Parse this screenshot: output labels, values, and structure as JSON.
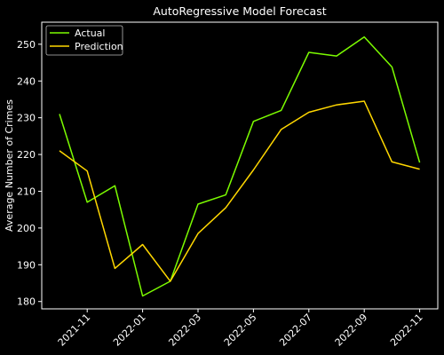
{
  "chart_data": {
    "type": "line",
    "title": "AutoRegressive Model Forecast",
    "xlabel": "",
    "ylabel": "Average Number of Crimes",
    "x": [
      "2021-10",
      "2021-11",
      "2021-12",
      "2022-01",
      "2022-02",
      "2022-03",
      "2022-04",
      "2022-05",
      "2022-06",
      "2022-07",
      "2022-08",
      "2022-09",
      "2022-10",
      "2022-11"
    ],
    "x_ticks": [
      "2021-11",
      "2022-01",
      "2022-03",
      "2022-05",
      "2022-07",
      "2022-09",
      "2022-11"
    ],
    "y_ticks": [
      180,
      190,
      200,
      210,
      220,
      230,
      240,
      250
    ],
    "ylim": [
      178,
      256
    ],
    "grid": false,
    "legend_position": "top-left",
    "series": [
      {
        "name": "Actual",
        "color": "#7cfc00",
        "values": [
          231,
          207,
          211.5,
          181.5,
          185.5,
          206.5,
          209,
          229,
          232,
          247.8,
          246.8,
          252,
          243.8,
          217.8
        ]
      },
      {
        "name": "Prediction",
        "color": "#ffd700",
        "values": [
          221,
          215.5,
          189,
          195.5,
          185.5,
          198.5,
          205.5,
          215.8,
          226.8,
          231.5,
          233.5,
          234.5,
          218,
          216
        ]
      }
    ]
  }
}
